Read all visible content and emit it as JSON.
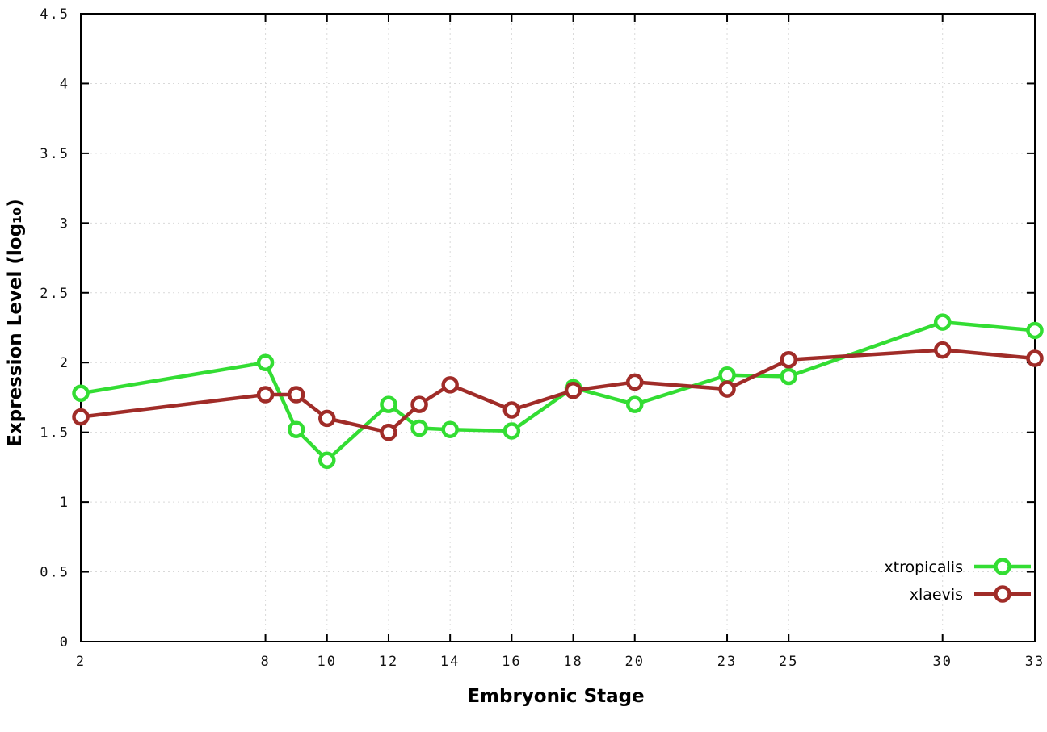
{
  "chart_data": {
    "type": "line",
    "title": "",
    "xlabel": "Embryonic Stage",
    "ylabel": "Expression Level (log₁₀)",
    "xlim": [
      2,
      33
    ],
    "ylim": [
      0,
      4.5
    ],
    "grid": true,
    "legend_position": "bottom-right",
    "xticks": [
      2,
      8,
      10,
      12,
      14,
      16,
      18,
      20,
      23,
      25,
      30,
      33
    ],
    "yticks": [
      0,
      0.5,
      1,
      1.5,
      2,
      2.5,
      3,
      3.5,
      4,
      4.5
    ],
    "ytick_labels": [
      "0",
      "0.5",
      "1",
      "1.5",
      "2",
      "2.5",
      "3",
      "3.5",
      "4",
      "4.5"
    ],
    "x": [
      2,
      8,
      9,
      10,
      12,
      13,
      14,
      16,
      18,
      20,
      23,
      25,
      30,
      33
    ],
    "series": [
      {
        "name": "xtropicalis",
        "color": "#33dd33",
        "values": [
          1.78,
          2.0,
          1.52,
          1.3,
          1.7,
          1.53,
          1.52,
          1.51,
          1.82,
          1.7,
          1.91,
          1.9,
          2.29,
          2.23
        ]
      },
      {
        "name": "xlaevis",
        "color": "#a02c28",
        "values": [
          1.61,
          1.77,
          1.77,
          1.6,
          1.5,
          1.7,
          1.84,
          1.66,
          1.8,
          1.86,
          1.81,
          2.02,
          2.09,
          2.03
        ]
      }
    ],
    "colors": {
      "grid": "#d9d9d9",
      "border": "#000000",
      "background": "#ffffff"
    }
  }
}
